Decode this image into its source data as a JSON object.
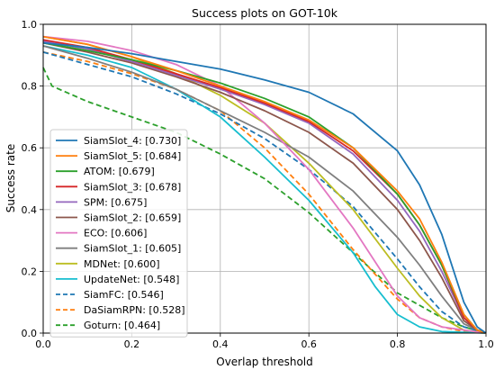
{
  "chart_data": {
    "type": "line",
    "title": "Success plots on GOT-10k",
    "xlabel": "Overlap threshold",
    "ylabel": "Success rate",
    "xlim": [
      0,
      1
    ],
    "ylim": [
      0,
      1
    ],
    "xticks": [
      "0.0",
      "0.2",
      "0.4",
      "0.6",
      "0.8",
      "1.0"
    ],
    "yticks": [
      "0.0",
      "0.2",
      "0.4",
      "0.6",
      "0.8",
      "1.0"
    ],
    "grid": true,
    "legend_position": "lower-left",
    "series": [
      {
        "name": "SiamSlot_4: [0.730]",
        "color": "#1f77b4",
        "dashed": false,
        "points": [
          [
            0,
            0.94
          ],
          [
            0.1,
            0.925
          ],
          [
            0.2,
            0.905
          ],
          [
            0.3,
            0.88
          ],
          [
            0.4,
            0.855
          ],
          [
            0.5,
            0.82
          ],
          [
            0.6,
            0.78
          ],
          [
            0.7,
            0.71
          ],
          [
            0.8,
            0.59
          ],
          [
            0.85,
            0.48
          ],
          [
            0.9,
            0.32
          ],
          [
            0.95,
            0.1
          ],
          [
            0.98,
            0.02
          ],
          [
            1.0,
            0
          ]
        ]
      },
      {
        "name": "SiamSlot_5: [0.684]",
        "color": "#ff7f0e",
        "dashed": false,
        "points": [
          [
            0,
            0.96
          ],
          [
            0.1,
            0.935
          ],
          [
            0.2,
            0.895
          ],
          [
            0.3,
            0.85
          ],
          [
            0.4,
            0.8
          ],
          [
            0.5,
            0.75
          ],
          [
            0.6,
            0.69
          ],
          [
            0.7,
            0.6
          ],
          [
            0.8,
            0.46
          ],
          [
            0.85,
            0.37
          ],
          [
            0.9,
            0.23
          ],
          [
            0.95,
            0.06
          ],
          [
            0.98,
            0.01
          ],
          [
            1.0,
            0
          ]
        ]
      },
      {
        "name": "ATOM: [0.679]",
        "color": "#2ca02c",
        "dashed": false,
        "points": [
          [
            0,
            0.94
          ],
          [
            0.1,
            0.915
          ],
          [
            0.2,
            0.885
          ],
          [
            0.3,
            0.85
          ],
          [
            0.4,
            0.81
          ],
          [
            0.5,
            0.76
          ],
          [
            0.6,
            0.7
          ],
          [
            0.7,
            0.6
          ],
          [
            0.8,
            0.45
          ],
          [
            0.85,
            0.35
          ],
          [
            0.9,
            0.22
          ],
          [
            0.95,
            0.06
          ],
          [
            0.98,
            0.01
          ],
          [
            1.0,
            0
          ]
        ]
      },
      {
        "name": "SiamSlot_3: [0.678]",
        "color": "#d62728",
        "dashed": false,
        "points": [
          [
            0,
            0.95
          ],
          [
            0.1,
            0.925
          ],
          [
            0.2,
            0.885
          ],
          [
            0.3,
            0.84
          ],
          [
            0.4,
            0.795
          ],
          [
            0.5,
            0.745
          ],
          [
            0.6,
            0.685
          ],
          [
            0.7,
            0.59
          ],
          [
            0.8,
            0.45
          ],
          [
            0.85,
            0.35
          ],
          [
            0.9,
            0.22
          ],
          [
            0.95,
            0.05
          ],
          [
            0.98,
            0.01
          ],
          [
            1.0,
            0
          ]
        ]
      },
      {
        "name": "SPM: [0.675]",
        "color": "#9467bd",
        "dashed": false,
        "points": [
          [
            0,
            0.945
          ],
          [
            0.1,
            0.92
          ],
          [
            0.2,
            0.88
          ],
          [
            0.3,
            0.835
          ],
          [
            0.4,
            0.79
          ],
          [
            0.5,
            0.74
          ],
          [
            0.6,
            0.68
          ],
          [
            0.7,
            0.58
          ],
          [
            0.8,
            0.43
          ],
          [
            0.85,
            0.33
          ],
          [
            0.9,
            0.2
          ],
          [
            0.95,
            0.05
          ],
          [
            0.98,
            0.01
          ],
          [
            1.0,
            0
          ]
        ]
      },
      {
        "name": "SiamSlot_2: [0.659]",
        "color": "#8c564b",
        "dashed": false,
        "points": [
          [
            0,
            0.94
          ],
          [
            0.1,
            0.91
          ],
          [
            0.2,
            0.875
          ],
          [
            0.3,
            0.83
          ],
          [
            0.4,
            0.78
          ],
          [
            0.5,
            0.72
          ],
          [
            0.6,
            0.65
          ],
          [
            0.7,
            0.55
          ],
          [
            0.8,
            0.4
          ],
          [
            0.85,
            0.3
          ],
          [
            0.9,
            0.18
          ],
          [
            0.95,
            0.04
          ],
          [
            0.98,
            0.01
          ],
          [
            1.0,
            0
          ]
        ]
      },
      {
        "name": "ECO: [0.606]",
        "color": "#e377c2",
        "dashed": false,
        "points": [
          [
            0,
            0.96
          ],
          [
            0.1,
            0.945
          ],
          [
            0.2,
            0.915
          ],
          [
            0.3,
            0.87
          ],
          [
            0.4,
            0.8
          ],
          [
            0.5,
            0.68
          ],
          [
            0.6,
            0.53
          ],
          [
            0.7,
            0.34
          ],
          [
            0.8,
            0.12
          ],
          [
            0.85,
            0.05
          ],
          [
            0.9,
            0.02
          ],
          [
            0.95,
            0.01
          ],
          [
            1.0,
            0
          ]
        ]
      },
      {
        "name": "SiamSlot_1: [0.605]",
        "color": "#7f7f7f",
        "dashed": false,
        "points": [
          [
            0,
            0.93
          ],
          [
            0.1,
            0.89
          ],
          [
            0.2,
            0.845
          ],
          [
            0.3,
            0.79
          ],
          [
            0.4,
            0.72
          ],
          [
            0.5,
            0.65
          ],
          [
            0.6,
            0.57
          ],
          [
            0.7,
            0.46
          ],
          [
            0.8,
            0.31
          ],
          [
            0.85,
            0.22
          ],
          [
            0.9,
            0.12
          ],
          [
            0.95,
            0.03
          ],
          [
            0.98,
            0.01
          ],
          [
            1.0,
            0
          ]
        ]
      },
      {
        "name": "MDNet: [0.600]",
        "color": "#bcbd22",
        "dashed": false,
        "points": [
          [
            0,
            0.96
          ],
          [
            0.1,
            0.935
          ],
          [
            0.2,
            0.895
          ],
          [
            0.3,
            0.84
          ],
          [
            0.4,
            0.77
          ],
          [
            0.5,
            0.68
          ],
          [
            0.6,
            0.55
          ],
          [
            0.7,
            0.4
          ],
          [
            0.8,
            0.21
          ],
          [
            0.85,
            0.12
          ],
          [
            0.9,
            0.05
          ],
          [
            0.95,
            0.01
          ],
          [
            1.0,
            0
          ]
        ]
      },
      {
        "name": "UpdateNet: [0.548]",
        "color": "#17becf",
        "dashed": false,
        "points": [
          [
            0,
            0.93
          ],
          [
            0.1,
            0.9
          ],
          [
            0.2,
            0.86
          ],
          [
            0.3,
            0.79
          ],
          [
            0.4,
            0.7
          ],
          [
            0.5,
            0.57
          ],
          [
            0.6,
            0.43
          ],
          [
            0.7,
            0.26
          ],
          [
            0.75,
            0.15
          ],
          [
            0.8,
            0.06
          ],
          [
            0.85,
            0.02
          ],
          [
            0.9,
            0.005
          ],
          [
            1.0,
            0
          ]
        ]
      },
      {
        "name": "SiamFC: [0.546]",
        "color": "#1f77b4",
        "dashed": true,
        "points": [
          [
            0,
            0.91
          ],
          [
            0.1,
            0.87
          ],
          [
            0.2,
            0.83
          ],
          [
            0.3,
            0.775
          ],
          [
            0.4,
            0.71
          ],
          [
            0.5,
            0.63
          ],
          [
            0.6,
            0.53
          ],
          [
            0.7,
            0.41
          ],
          [
            0.8,
            0.24
          ],
          [
            0.85,
            0.15
          ],
          [
            0.9,
            0.07
          ],
          [
            0.95,
            0.02
          ],
          [
            1.0,
            0
          ]
        ]
      },
      {
        "name": "DaSiamRPN: [0.528]",
        "color": "#ff7f0e",
        "dashed": true,
        "points": [
          [
            0,
            0.91
          ],
          [
            0.1,
            0.88
          ],
          [
            0.2,
            0.84
          ],
          [
            0.3,
            0.79
          ],
          [
            0.4,
            0.72
          ],
          [
            0.5,
            0.6
          ],
          [
            0.6,
            0.45
          ],
          [
            0.7,
            0.27
          ],
          [
            0.8,
            0.11
          ],
          [
            0.85,
            0.05
          ],
          [
            0.9,
            0.02
          ],
          [
            0.95,
            0.005
          ],
          [
            1.0,
            0
          ]
        ]
      },
      {
        "name": "Goturn: [0.464]",
        "color": "#2ca02c",
        "dashed": true,
        "points": [
          [
            0,
            0.86
          ],
          [
            0.02,
            0.8
          ],
          [
            0.1,
            0.75
          ],
          [
            0.2,
            0.7
          ],
          [
            0.3,
            0.65
          ],
          [
            0.4,
            0.58
          ],
          [
            0.5,
            0.5
          ],
          [
            0.6,
            0.39
          ],
          [
            0.7,
            0.26
          ],
          [
            0.8,
            0.13
          ],
          [
            0.9,
            0.05
          ],
          [
            0.95,
            0.02
          ],
          [
            1.0,
            0
          ]
        ]
      }
    ]
  }
}
